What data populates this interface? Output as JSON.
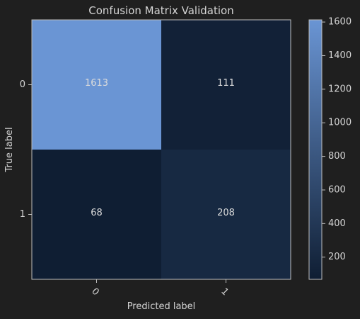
{
  "chart_data": {
    "type": "heatmap",
    "title": "Confusion Matrix Validation",
    "xlabel": "Predicted label",
    "ylabel": "True label",
    "row_labels": [
      "0",
      "1"
    ],
    "col_labels": [
      "0",
      "1"
    ],
    "matrix": [
      [
        1613,
        111
      ],
      [
        68,
        208
      ]
    ],
    "cell_labels": [
      [
        "1613",
        "111"
      ],
      [
        "68",
        "208"
      ]
    ],
    "colorbar": {
      "range": [
        68,
        1613
      ],
      "ticks": [
        200,
        400,
        600,
        800,
        1000,
        1200,
        1400,
        1600
      ],
      "tick_labels": [
        "200",
        "400",
        "600",
        "800",
        "1000",
        "1200",
        "1400",
        "1600"
      ]
    },
    "colors": {
      "low": "#0f1e33",
      "high": "#6a95d4",
      "background": "#1f1f1f",
      "text": "#d4d4d4",
      "axis": "#bdbdbd"
    }
  }
}
